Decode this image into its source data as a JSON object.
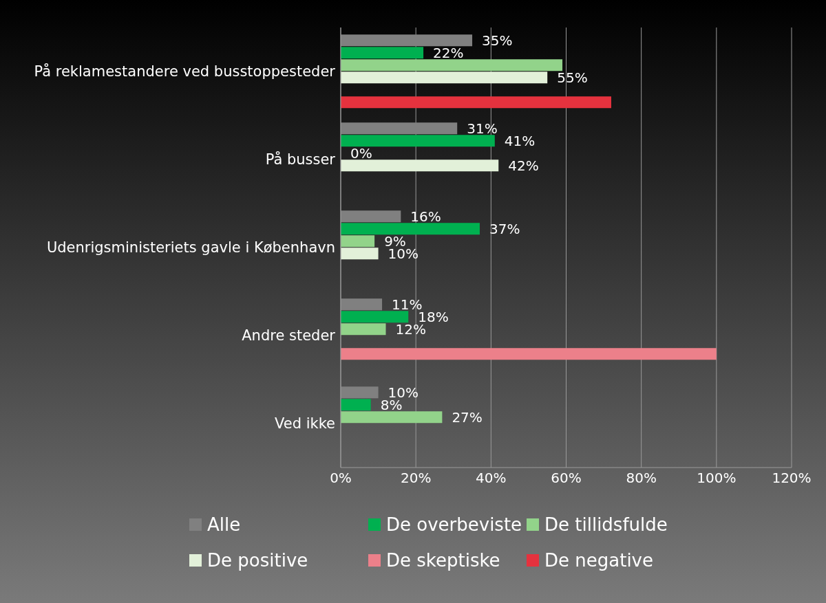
{
  "chart_data": {
    "type": "bar",
    "orientation": "horizontal",
    "categories": [
      "På reklamestandere ved busstoppesteder",
      "På busser",
      "Udenrigsministeriets gavle i København",
      "Andre steder",
      "Ved ikke"
    ],
    "series": [
      {
        "name": "Alle",
        "color": "#808080",
        "values": [
          35,
          31,
          16,
          11,
          10
        ],
        "value_labels": [
          "35%",
          "31%",
          "16%",
          "11%",
          "10%"
        ]
      },
      {
        "name": "De overbeviste",
        "color": "#00b050",
        "values": [
          22,
          41,
          37,
          18,
          8
        ],
        "value_labels": [
          "22%",
          "41%",
          "37%",
          "18%",
          "8%"
        ]
      },
      {
        "name": "De tillidsfulde",
        "color": "#92d38a",
        "values": [
          59,
          0,
          9,
          12,
          27
        ],
        "value_labels": [
          null,
          "0%",
          "9%",
          "12%",
          "27%"
        ]
      },
      {
        "name": "De positive",
        "color": "#e2f0d9",
        "values": [
          55,
          42,
          10,
          null,
          null
        ],
        "value_labels": [
          "55%",
          "42%",
          "10%",
          null,
          null
        ]
      },
      {
        "name": "De skeptiske",
        "color": "#ec808a",
        "values": [
          null,
          null,
          null,
          100,
          null
        ],
        "value_labels": [
          null,
          null,
          null,
          null,
          null
        ]
      },
      {
        "name": "De negative",
        "color": "#e5323e",
        "values": [
          72,
          null,
          null,
          null,
          null
        ],
        "value_labels": [
          null,
          null,
          null,
          null,
          null
        ]
      }
    ],
    "xlim": [
      0,
      120
    ],
    "xticks": [
      {
        "value": 0,
        "label": "0%"
      },
      {
        "value": 20,
        "label": "20%"
      },
      {
        "value": 40,
        "label": "40%"
      },
      {
        "value": 60,
        "label": "60%"
      },
      {
        "value": 80,
        "label": "80%"
      },
      {
        "value": 100,
        "label": "100%"
      },
      {
        "value": 120,
        "label": "120%"
      }
    ],
    "grid": "x",
    "legend": "bottom"
  }
}
